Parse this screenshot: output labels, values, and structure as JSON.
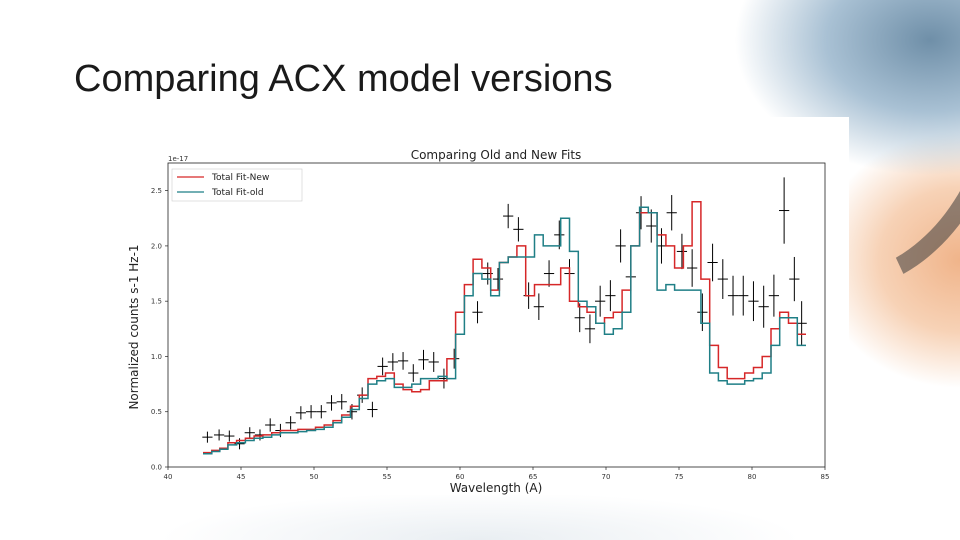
{
  "slide": {
    "title": "Comparing ACX model versions"
  },
  "chart_data": {
    "type": "line",
    "title": "Comparing Old and New Fits",
    "xlabel": "Wavelength (A)",
    "ylabel": "Normalized counts  s-1  Hz-1",
    "offset_label": "1e-17",
    "xlim": [
      40,
      85
    ],
    "ylim": [
      0,
      2.75
    ],
    "xticks": [
      40,
      45,
      50,
      55,
      60,
      65,
      70,
      75,
      80,
      85
    ],
    "xtick_labels": [
      "40",
      "45",
      "50",
      "55",
      "60",
      "65",
      "70",
      "75",
      "80",
      "85"
    ],
    "yticks": [
      0,
      0.5,
      1.0,
      1.5,
      2.0,
      2.5
    ],
    "ytick_labels": [
      "0.0",
      "0.5",
      "1.0",
      "1.5",
      "2.0",
      "2.5"
    ],
    "legend_position": "top-left",
    "grid": false,
    "x": [
      42.7,
      43.3,
      43.8,
      44.4,
      45.0,
      45.6,
      46.2,
      46.8,
      47.4,
      48.0,
      48.6,
      49.2,
      49.8,
      50.4,
      51.0,
      51.6,
      52.2,
      52.8,
      53.4,
      54.0,
      54.6,
      55.2,
      55.8,
      56.4,
      57.0,
      57.6,
      58.2,
      58.8,
      59.4,
      60.0,
      60.6,
      61.2,
      61.8,
      62.4,
      63.0,
      63.6,
      64.2,
      64.8,
      65.4,
      66.0,
      66.6,
      67.2,
      67.8,
      68.4,
      69.0,
      69.6,
      70.2,
      70.8,
      71.4,
      72.0,
      72.6,
      73.2,
      73.8,
      74.4,
      75.0,
      75.6,
      76.2,
      76.8,
      77.4,
      78.0,
      78.6,
      79.2,
      79.8,
      80.4,
      81.0,
      81.6,
      82.2,
      82.8,
      83.4
    ],
    "series": [
      {
        "name": "Total Fit-New",
        "color": "#d62728",
        "values": [
          0.13,
          0.15,
          0.17,
          0.22,
          0.24,
          0.26,
          0.28,
          0.29,
          0.31,
          0.33,
          0.33,
          0.34,
          0.34,
          0.36,
          0.38,
          0.42,
          0.47,
          0.55,
          0.65,
          0.8,
          0.82,
          0.85,
          0.75,
          0.7,
          0.68,
          0.7,
          0.78,
          0.78,
          0.98,
          1.4,
          1.65,
          1.88,
          1.8,
          1.6,
          1.85,
          1.9,
          2.0,
          1.55,
          1.65,
          1.65,
          1.65,
          1.8,
          1.5,
          1.45,
          1.4,
          1.3,
          1.35,
          1.4,
          1.6,
          2.0,
          2.3,
          2.3,
          2.1,
          2.0,
          1.8,
          2.0,
          2.4,
          1.7,
          1.1,
          0.9,
          0.8,
          0.8,
          0.85,
          0.9,
          1.0,
          1.25,
          1.4,
          1.3,
          1.2
        ]
      },
      {
        "name": "Total Fit-old",
        "color": "#1f7f86",
        "values": [
          0.12,
          0.14,
          0.16,
          0.2,
          0.22,
          0.24,
          0.26,
          0.27,
          0.29,
          0.31,
          0.31,
          0.32,
          0.33,
          0.34,
          0.36,
          0.4,
          0.45,
          0.52,
          0.62,
          0.75,
          0.78,
          0.8,
          0.72,
          0.72,
          0.75,
          0.8,
          0.8,
          0.82,
          0.8,
          1.2,
          1.55,
          1.75,
          1.7,
          1.55,
          1.85,
          1.9,
          1.9,
          1.9,
          2.1,
          2.0,
          2.0,
          2.25,
          1.95,
          1.5,
          1.45,
          1.3,
          1.2,
          1.25,
          1.4,
          2.0,
          2.35,
          2.3,
          1.6,
          1.65,
          1.6,
          1.6,
          1.6,
          1.3,
          0.85,
          0.78,
          0.75,
          0.75,
          0.78,
          0.8,
          0.85,
          1.1,
          1.35,
          1.35,
          1.1
        ]
      }
    ],
    "observed": [
      {
        "x": 42.7,
        "y": 0.27,
        "xerr": 0.35,
        "yerr": 0.05
      },
      {
        "x": 43.5,
        "y": 0.29,
        "xerr": 0.35,
        "yerr": 0.05
      },
      {
        "x": 44.2,
        "y": 0.28,
        "xerr": 0.35,
        "yerr": 0.05
      },
      {
        "x": 44.9,
        "y": 0.21,
        "xerr": 0.35,
        "yerr": 0.05
      },
      {
        "x": 45.6,
        "y": 0.31,
        "xerr": 0.35,
        "yerr": 0.05
      },
      {
        "x": 46.3,
        "y": 0.29,
        "xerr": 0.35,
        "yerr": 0.05
      },
      {
        "x": 47.0,
        "y": 0.38,
        "xerr": 0.35,
        "yerr": 0.06
      },
      {
        "x": 47.7,
        "y": 0.33,
        "xerr": 0.35,
        "yerr": 0.06
      },
      {
        "x": 48.4,
        "y": 0.4,
        "xerr": 0.35,
        "yerr": 0.06
      },
      {
        "x": 49.1,
        "y": 0.49,
        "xerr": 0.35,
        "yerr": 0.06
      },
      {
        "x": 49.8,
        "y": 0.5,
        "xerr": 0.35,
        "yerr": 0.06
      },
      {
        "x": 50.5,
        "y": 0.5,
        "xerr": 0.35,
        "yerr": 0.06
      },
      {
        "x": 51.2,
        "y": 0.58,
        "xerr": 0.35,
        "yerr": 0.07
      },
      {
        "x": 51.9,
        "y": 0.59,
        "xerr": 0.35,
        "yerr": 0.07
      },
      {
        "x": 52.6,
        "y": 0.5,
        "xerr": 0.35,
        "yerr": 0.07
      },
      {
        "x": 53.3,
        "y": 0.65,
        "xerr": 0.35,
        "yerr": 0.07
      },
      {
        "x": 54.0,
        "y": 0.52,
        "xerr": 0.35,
        "yerr": 0.07
      },
      {
        "x": 54.7,
        "y": 0.91,
        "xerr": 0.35,
        "yerr": 0.08
      },
      {
        "x": 55.4,
        "y": 0.95,
        "xerr": 0.35,
        "yerr": 0.08
      },
      {
        "x": 56.1,
        "y": 0.96,
        "xerr": 0.35,
        "yerr": 0.08
      },
      {
        "x": 56.8,
        "y": 0.85,
        "xerr": 0.35,
        "yerr": 0.08
      },
      {
        "x": 57.5,
        "y": 0.97,
        "xerr": 0.35,
        "yerr": 0.09
      },
      {
        "x": 58.2,
        "y": 0.95,
        "xerr": 0.35,
        "yerr": 0.09
      },
      {
        "x": 58.9,
        "y": 0.8,
        "xerr": 0.35,
        "yerr": 0.09
      },
      {
        "x": 59.6,
        "y": 0.98,
        "xerr": 0.35,
        "yerr": 0.09
      },
      {
        "x": 61.2,
        "y": 1.4,
        "xerr": 0.35,
        "yerr": 0.1
      },
      {
        "x": 61.9,
        "y": 1.75,
        "xerr": 0.35,
        "yerr": 0.1
      },
      {
        "x": 62.6,
        "y": 1.7,
        "xerr": 0.35,
        "yerr": 0.1
      },
      {
        "x": 63.3,
        "y": 2.27,
        "xerr": 0.35,
        "yerr": 0.11
      },
      {
        "x": 64.0,
        "y": 2.15,
        "xerr": 0.35,
        "yerr": 0.11
      },
      {
        "x": 64.7,
        "y": 1.55,
        "xerr": 0.35,
        "yerr": 0.12
      },
      {
        "x": 65.4,
        "y": 1.45,
        "xerr": 0.35,
        "yerr": 0.12
      },
      {
        "x": 66.1,
        "y": 1.75,
        "xerr": 0.35,
        "yerr": 0.12
      },
      {
        "x": 66.8,
        "y": 2.1,
        "xerr": 0.35,
        "yerr": 0.13
      },
      {
        "x": 67.5,
        "y": 1.75,
        "xerr": 0.35,
        "yerr": 0.13
      },
      {
        "x": 68.2,
        "y": 1.35,
        "xerr": 0.35,
        "yerr": 0.13
      },
      {
        "x": 68.9,
        "y": 1.25,
        "xerr": 0.35,
        "yerr": 0.13
      },
      {
        "x": 69.6,
        "y": 1.5,
        "xerr": 0.35,
        "yerr": 0.14
      },
      {
        "x": 70.3,
        "y": 1.55,
        "xerr": 0.35,
        "yerr": 0.14
      },
      {
        "x": 71.0,
        "y": 2.0,
        "xerr": 0.35,
        "yerr": 0.15
      },
      {
        "x": 71.7,
        "y": 1.72,
        "xerr": 0.35,
        "yerr": 0.15
      },
      {
        "x": 72.4,
        "y": 2.3,
        "xerr": 0.35,
        "yerr": 0.15
      },
      {
        "x": 73.1,
        "y": 2.18,
        "xerr": 0.35,
        "yerr": 0.15
      },
      {
        "x": 73.8,
        "y": 2.0,
        "xerr": 0.35,
        "yerr": 0.16
      },
      {
        "x": 74.5,
        "y": 2.3,
        "xerr": 0.35,
        "yerr": 0.16
      },
      {
        "x": 75.2,
        "y": 1.95,
        "xerr": 0.35,
        "yerr": 0.16
      },
      {
        "x": 75.9,
        "y": 1.8,
        "xerr": 0.35,
        "yerr": 0.17
      },
      {
        "x": 76.6,
        "y": 1.4,
        "xerr": 0.35,
        "yerr": 0.17
      },
      {
        "x": 77.3,
        "y": 1.85,
        "xerr": 0.35,
        "yerr": 0.17
      },
      {
        "x": 78.0,
        "y": 1.7,
        "xerr": 0.35,
        "yerr": 0.18
      },
      {
        "x": 78.7,
        "y": 1.55,
        "xerr": 0.35,
        "yerr": 0.18
      },
      {
        "x": 79.4,
        "y": 1.55,
        "xerr": 0.35,
        "yerr": 0.18
      },
      {
        "x": 80.1,
        "y": 1.5,
        "xerr": 0.35,
        "yerr": 0.18
      },
      {
        "x": 80.8,
        "y": 1.45,
        "xerr": 0.35,
        "yerr": 0.19
      },
      {
        "x": 81.5,
        "y": 1.55,
        "xerr": 0.35,
        "yerr": 0.19
      },
      {
        "x": 82.2,
        "y": 2.32,
        "xerr": 0.35,
        "yerr": 0.3
      },
      {
        "x": 82.9,
        "y": 1.7,
        "xerr": 0.35,
        "yerr": 0.2
      },
      {
        "x": 83.4,
        "y": 1.3,
        "xerr": 0.35,
        "yerr": 0.2
      }
    ]
  }
}
